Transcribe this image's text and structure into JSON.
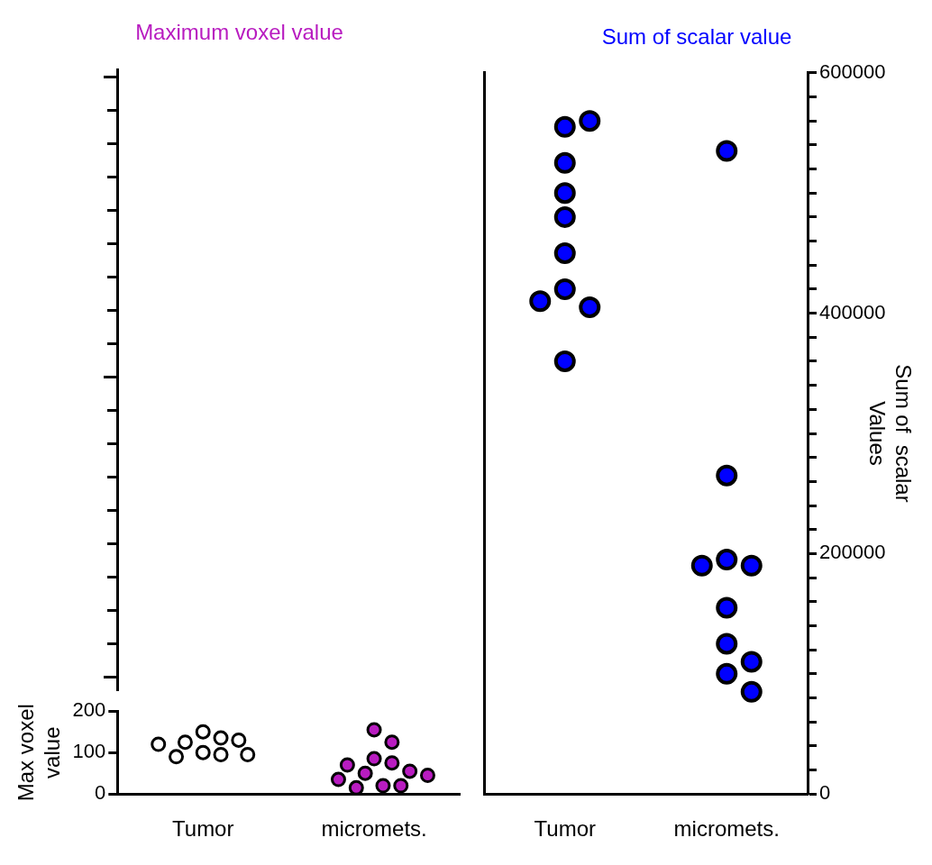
{
  "chart_data": [
    {
      "type": "scatter",
      "title": "Maximum voxel value",
      "ylabel": "Max voxel value",
      "categories": [
        "Tumor",
        "micromets."
      ],
      "marker": "circle",
      "ylim": [
        0,
        200
      ],
      "yticks": [
        0,
        100,
        200
      ],
      "series": [
        {
          "color": "#ffffff",
          "x": [
            "Tumor",
            "Tumor",
            "Tumor",
            "Tumor",
            "Tumor",
            "Tumor",
            "Tumor",
            "Tumor",
            "Tumor"
          ],
          "values": [
            100,
            150,
            135,
            125,
            95,
            130,
            90,
            95,
            120
          ]
        },
        {
          "color": "#b81cc0",
          "x": [
            "micromets.",
            "micromets.",
            "micromets.",
            "micromets.",
            "micromets.",
            "micromets.",
            "micromets.",
            "micromets.",
            "micromets.",
            "micromets.",
            "micromets.",
            "micromets."
          ],
          "values": [
            155,
            125,
            85,
            75,
            50,
            20,
            70,
            55,
            20,
            35,
            45,
            15
          ]
        }
      ]
    },
    {
      "type": "scatter",
      "title": "Sum of scalar value",
      "y2label": "Sum of  scalar Values",
      "categories": [
        "Tumor",
        "micromets."
      ],
      "marker": "circle",
      "y2lim": [
        0,
        600000
      ],
      "y2ticks": [
        0,
        {
          "value": 20000,
          "label": null
        },
        {
          "value": 40000,
          "label": null
        },
        {
          "value": 60000,
          "label": null
        },
        {
          "value": 80000,
          "label": null
        },
        {
          "value": 100000,
          "label": null
        },
        {
          "value": 120000,
          "label": null
        },
        {
          "value": 140000,
          "label": null
        },
        {
          "value": 160000,
          "label": null
        },
        {
          "value": 180000,
          "label": null
        },
        200000,
        {
          "value": 220000,
          "label": null
        },
        {
          "value": 240000,
          "label": null
        },
        {
          "value": 260000,
          "label": null
        },
        {
          "value": 280000,
          "label": null
        },
        {
          "value": 300000,
          "label": null
        },
        {
          "value": 320000,
          "label": null
        },
        {
          "value": 340000,
          "label": null
        },
        {
          "value": 360000,
          "label": null
        },
        {
          "value": 380000,
          "label": null
        },
        400000,
        {
          "value": 420000,
          "label": null
        },
        {
          "value": 440000,
          "label": null
        },
        {
          "value": 460000,
          "label": null
        },
        {
          "value": 480000,
          "label": null
        },
        {
          "value": 500000,
          "label": null
        },
        {
          "value": 520000,
          "label": null
        },
        {
          "value": 540000,
          "label": null
        },
        {
          "value": 560000,
          "label": null
        },
        {
          "value": 580000,
          "label": null
        },
        600000
      ],
      "series": [
        {
          "color": "#0000ff",
          "axis": "y2",
          "x": [
            "Tumor",
            "Tumor",
            "Tumor",
            "Tumor",
            "Tumor",
            "Tumor",
            "Tumor",
            "Tumor",
            "Tumor",
            "Tumor"
          ],
          "values": [
            555000,
            560000,
            525000,
            500000,
            480000,
            450000,
            420000,
            405000,
            410000,
            360000
          ]
        },
        {
          "color": "#0000ff",
          "axis": "y2",
          "x": [
            "micromets.",
            "micromets.",
            "micromets.",
            "micromets.",
            "micromets.",
            "micromets.",
            "micromets.",
            "micromets.",
            "micromets.",
            "micromets."
          ],
          "values": [
            535000,
            265000,
            195000,
            190000,
            190000,
            155000,
            125000,
            110000,
            100000,
            85000
          ]
        }
      ]
    }
  ]
}
